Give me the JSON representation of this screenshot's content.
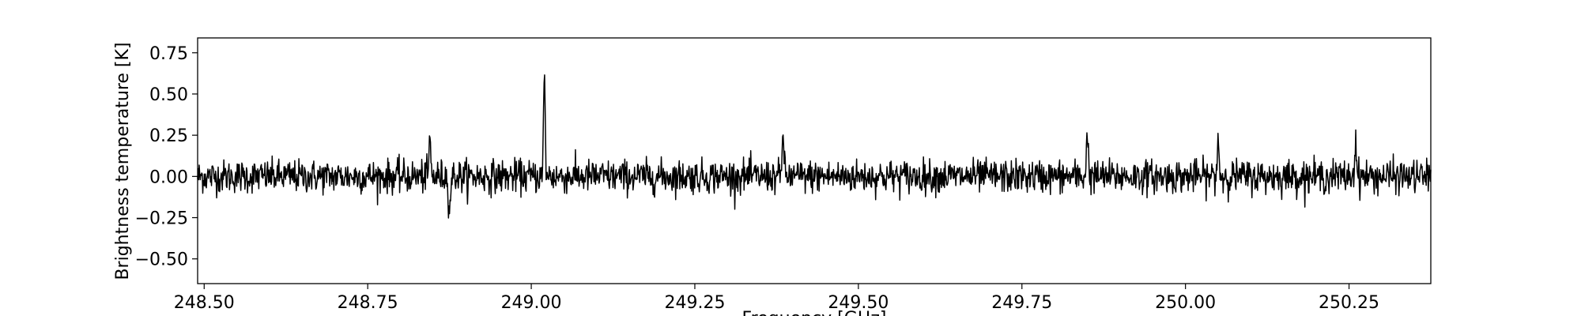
{
  "chart_data": {
    "type": "line",
    "title": "",
    "xlabel": "Frequency [GHz]",
    "ylabel": "Brightness temperature [K]",
    "xlim": [
      248.49,
      250.375
    ],
    "ylim": [
      -0.65,
      0.84
    ],
    "grid": false,
    "xticks": [
      248.5,
      248.75,
      249.0,
      249.25,
      249.5,
      249.75,
      250.0,
      250.25
    ],
    "xtick_labels": [
      "248.50",
      "248.75",
      "249.00",
      "249.25",
      "249.50",
      "249.75",
      "250.00",
      "250.25"
    ],
    "yticks": [
      0.75,
      0.5,
      0.25,
      0.0,
      -0.25,
      -0.5
    ],
    "ytick_labels": [
      "0.75",
      "0.50",
      "0.25",
      "0.00",
      "−0.25",
      "−0.50"
    ],
    "series_color": "#000000",
    "series": [
      {
        "x_start": 248.49,
        "x_end": 250.375,
        "noise_rms": 0.055,
        "values_note": "",
        "features": [
          {
            "x": 248.845,
            "y": 0.23
          },
          {
            "x": 248.875,
            "y": -0.23
          },
          {
            "x": 249.02,
            "y": 0.59
          },
          {
            "x": 249.385,
            "y": 0.28
          },
          {
            "x": 249.85,
            "y": 0.29
          },
          {
            "x": 250.05,
            "y": 0.24
          },
          {
            "x": 250.26,
            "y": 0.23
          }
        ]
      }
    ]
  }
}
